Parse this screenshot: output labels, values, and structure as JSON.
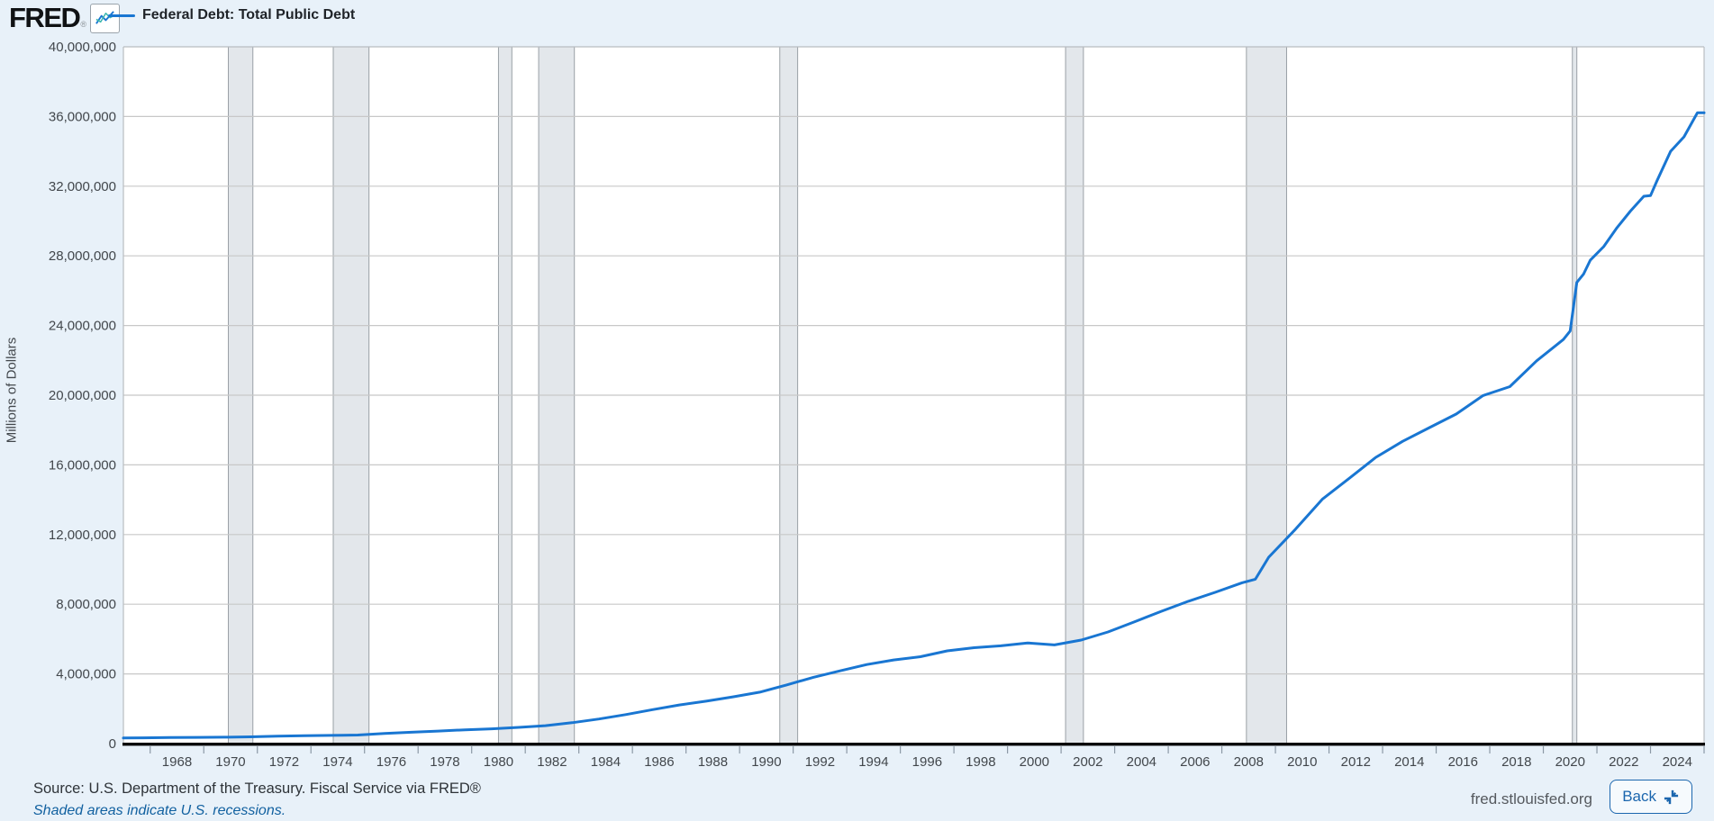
{
  "header": {
    "logo_text": "FRED",
    "logo_registered": "®",
    "legend_label": "Federal Debt: Total Public Debt"
  },
  "footer": {
    "source_text": "Source: U.S. Department of the Treasury. Fiscal Service via FRED®",
    "recessions_note": "Shaded areas indicate U.S. recessions.",
    "site_url": "fred.stlouisfed.org",
    "back_label": "Back"
  },
  "colors": {
    "page_background": "#e8f1f9",
    "plot_background": "#ffffff",
    "line": "#1976d2",
    "gridline": "#c8c8c8",
    "plot_border": "#b9bdc1",
    "axis_line": "#000000",
    "recession_fill": "#e3e7eb",
    "recession_edge": "#9aa0a6",
    "tick_label": "#42474c",
    "tick_mark": "#8c99a6"
  },
  "chart_data": {
    "type": "line",
    "title": "Federal Debt: Total Public Debt",
    "series_name": "Federal Debt: Total Public Debt",
    "xlabel": "",
    "ylabel": "Millions of Dollars",
    "x_domain": [
      1966,
      2025
    ],
    "ylim": [
      0,
      40000000
    ],
    "y_tick_step": 4000000,
    "y_tick_labels": [
      "0",
      "4,000,000",
      "8,000,000",
      "12,000,000",
      "16,000,000",
      "20,000,000",
      "24,000,000",
      "28,000,000",
      "32,000,000",
      "36,000,000",
      "40,000,000"
    ],
    "x_tick_labels": [
      "1968",
      "1970",
      "1972",
      "1974",
      "1976",
      "1978",
      "1980",
      "1982",
      "1984",
      "1986",
      "1988",
      "1990",
      "1992",
      "1994",
      "1996",
      "1998",
      "2000",
      "2002",
      "2004",
      "2006",
      "2008",
      "2010",
      "2012",
      "2014",
      "2016",
      "2018",
      "2020",
      "2022",
      "2024"
    ],
    "grid": true,
    "legend_position": "top-left",
    "recessions": [
      [
        1969.917,
        1970.833
      ],
      [
        1973.833,
        1975.167
      ],
      [
        1980.0,
        1980.5
      ],
      [
        1981.5,
        1982.833
      ],
      [
        1990.5,
        1991.167
      ],
      [
        2001.167,
        2001.833
      ],
      [
        2007.917,
        2009.417
      ],
      [
        2020.083,
        2020.25
      ]
    ],
    "points": [
      [
        1966.0,
        320999
      ],
      [
        1966.75,
        329319
      ],
      [
        1967.75,
        344663
      ],
      [
        1968.75,
        358029
      ],
      [
        1969.75,
        368226
      ],
      [
        1970.75,
        389158
      ],
      [
        1971.75,
        424131
      ],
      [
        1972.75,
        449298
      ],
      [
        1973.75,
        469898
      ],
      [
        1974.75,
        492665
      ],
      [
        1975.75,
        576649
      ],
      [
        1976.75,
        653544
      ],
      [
        1977.75,
        718943
      ],
      [
        1978.75,
        789207
      ],
      [
        1979.75,
        845116
      ],
      [
        1980.75,
        930210
      ],
      [
        1981.75,
        1028729
      ],
      [
        1982.75,
        1197073
      ],
      [
        1983.75,
        1410702
      ],
      [
        1984.75,
        1662966
      ],
      [
        1985.75,
        1945941
      ],
      [
        1986.75,
        2214835
      ],
      [
        1987.75,
        2431715
      ],
      [
        1988.75,
        2684392
      ],
      [
        1989.75,
        2952994
      ],
      [
        1990.75,
        3364820
      ],
      [
        1991.75,
        3801698
      ],
      [
        1992.75,
        4177009
      ],
      [
        1993.75,
        4535687
      ],
      [
        1994.75,
        4800150
      ],
      [
        1995.75,
        4988665
      ],
      [
        1996.75,
        5323172
      ],
      [
        1997.75,
        5502388
      ],
      [
        1998.75,
        5614217
      ],
      [
        1999.75,
        5776091
      ],
      [
        2000.75,
        5662216
      ],
      [
        2001.75,
        5943439
      ],
      [
        2002.75,
        6405707
      ],
      [
        2003.75,
        6998021
      ],
      [
        2004.75,
        7596143
      ],
      [
        2005.75,
        8170424
      ],
      [
        2006.75,
        8680224
      ],
      [
        2007.75,
        9229172
      ],
      [
        2008.25,
        9437593
      ],
      [
        2008.75,
        10699805
      ],
      [
        2009.75,
        12311349
      ],
      [
        2010.75,
        14025215
      ],
      [
        2011.75,
        15222940
      ],
      [
        2012.75,
        16432730
      ],
      [
        2013.75,
        17351970
      ],
      [
        2014.75,
        18141444
      ],
      [
        2015.75,
        18922179
      ],
      [
        2016.75,
        19976827
      ],
      [
        2017.75,
        20492747
      ],
      [
        2018.75,
        21974096
      ],
      [
        2019.75,
        23201380
      ],
      [
        2020.0,
        23686361
      ],
      [
        2020.25,
        26477234
      ],
      [
        2020.5,
        26945391
      ],
      [
        2020.75,
        27747798
      ],
      [
        2021.25,
        28529436
      ],
      [
        2021.75,
        29617215
      ],
      [
        2022.25,
        30568581
      ],
      [
        2022.75,
        31419689
      ],
      [
        2023.0,
        31458438
      ],
      [
        2023.25,
        32332274
      ],
      [
        2023.75,
        34001494
      ],
      [
        2024.25,
        34831000
      ],
      [
        2024.75,
        36218605
      ],
      [
        2025.0,
        36214438
      ]
    ]
  }
}
